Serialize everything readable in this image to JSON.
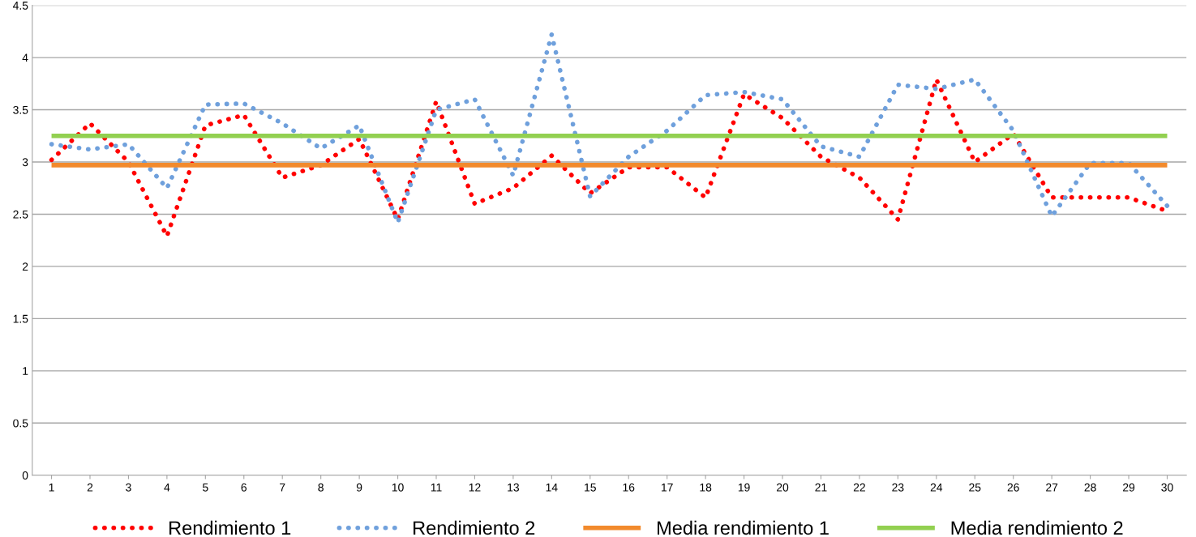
{
  "chart_data": {
    "type": "line",
    "categories": [
      "1",
      "2",
      "3",
      "4",
      "5",
      "6",
      "7",
      "8",
      "9",
      "10",
      "11",
      "12",
      "13",
      "14",
      "15",
      "16",
      "17",
      "18",
      "19",
      "20",
      "21",
      "22",
      "23",
      "24",
      "25",
      "26",
      "27",
      "28",
      "29",
      "30"
    ],
    "series": [
      {
        "name": "Rendimiento 1",
        "color": "#ff0000",
        "line_style": "dotted",
        "values": [
          3.02,
          3.37,
          3.0,
          2.29,
          3.35,
          3.45,
          2.85,
          2.97,
          3.22,
          2.45,
          3.58,
          2.6,
          2.75,
          3.06,
          2.7,
          2.95,
          2.95,
          2.66,
          3.65,
          3.42,
          3.05,
          2.85,
          2.45,
          3.79,
          3.0,
          3.27,
          2.66,
          2.66,
          2.66,
          2.53
        ]
      },
      {
        "name": "Rendimiento 2",
        "color": "#6fa0dc",
        "line_style": "dotted",
        "values": [
          3.17,
          3.12,
          3.17,
          2.75,
          3.55,
          3.56,
          3.37,
          3.13,
          3.35,
          2.42,
          3.5,
          3.6,
          2.87,
          4.22,
          2.67,
          3.05,
          3.3,
          3.64,
          3.67,
          3.6,
          3.15,
          3.05,
          3.74,
          3.7,
          3.79,
          3.3,
          2.48,
          2.99,
          2.99,
          2.58
        ]
      },
      {
        "name": "Media rendimiento 1",
        "color": "#f28a2c",
        "line_style": "solid",
        "values": [
          2.97,
          2.97,
          2.97,
          2.97,
          2.97,
          2.97,
          2.97,
          2.97,
          2.97,
          2.97,
          2.97,
          2.97,
          2.97,
          2.97,
          2.97,
          2.97,
          2.97,
          2.97,
          2.97,
          2.97,
          2.97,
          2.97,
          2.97,
          2.97,
          2.97,
          2.97,
          2.97,
          2.97,
          2.97,
          2.97
        ]
      },
      {
        "name": "Media rendimiento 2",
        "color": "#92d050",
        "line_style": "solid",
        "values": [
          3.25,
          3.25,
          3.25,
          3.25,
          3.25,
          3.25,
          3.25,
          3.25,
          3.25,
          3.25,
          3.25,
          3.25,
          3.25,
          3.25,
          3.25,
          3.25,
          3.25,
          3.25,
          3.25,
          3.25,
          3.25,
          3.25,
          3.25,
          3.25,
          3.25,
          3.25,
          3.25,
          3.25,
          3.25,
          3.25
        ]
      }
    ],
    "ylim": [
      0,
      4.5
    ],
    "yticks": [
      0,
      0.5,
      1,
      1.5,
      2,
      2.5,
      3,
      3.5,
      4,
      4.5
    ],
    "grid": "y",
    "legend": "bottom",
    "marker": "none"
  }
}
